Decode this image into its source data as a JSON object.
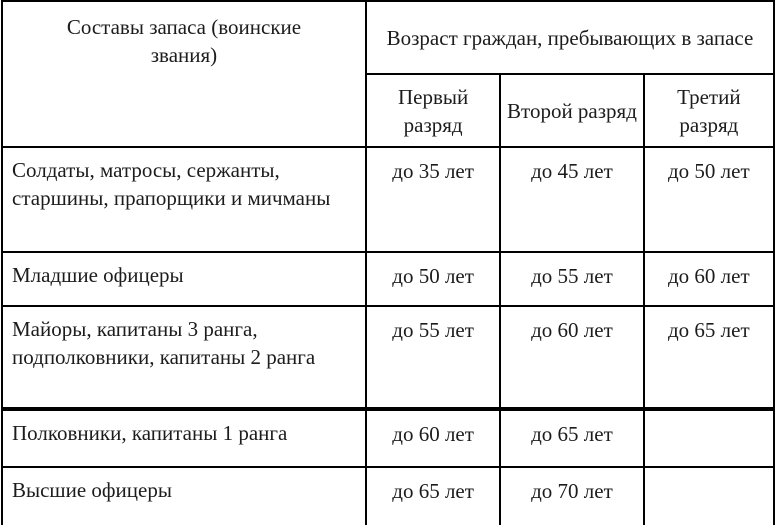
{
  "theme": {
    "background_color": "#ffffff",
    "text_color": "#1c1c1c",
    "border_color": "#000000"
  },
  "table": {
    "header": {
      "rank_column": "Составы запаса (воинские звания)",
      "age_group": "Возраст граждан, пребывающих в запасе",
      "categories": [
        "Первый разряд",
        "Второй разряд",
        "Третий разряд"
      ]
    },
    "rows": [
      {
        "rank": "Солдаты, матросы, сержанты, старшины, прапорщики и мичманы",
        "first": "до 35 лет",
        "second": "до 45 лет",
        "third": "до 50 лет"
      },
      {
        "rank": "Младшие офицеры",
        "first": "до 50 лет",
        "second": "до 55 лет",
        "third": "до 60 лет"
      },
      {
        "rank": "Майоры, капитаны 3 ранга, подполковники, капитаны 2 ранга",
        "first": "до 55 лет",
        "second": "до 60 лет",
        "third": "до 65 лет"
      },
      {
        "rank": "Полковники, капитаны 1 ранга",
        "first": "до 60 лет",
        "second": "до 65 лет",
        "third": ""
      },
      {
        "rank": "Высшие офицеры",
        "first": "до 65 лет",
        "second": "до 70 лет",
        "third": ""
      }
    ]
  }
}
